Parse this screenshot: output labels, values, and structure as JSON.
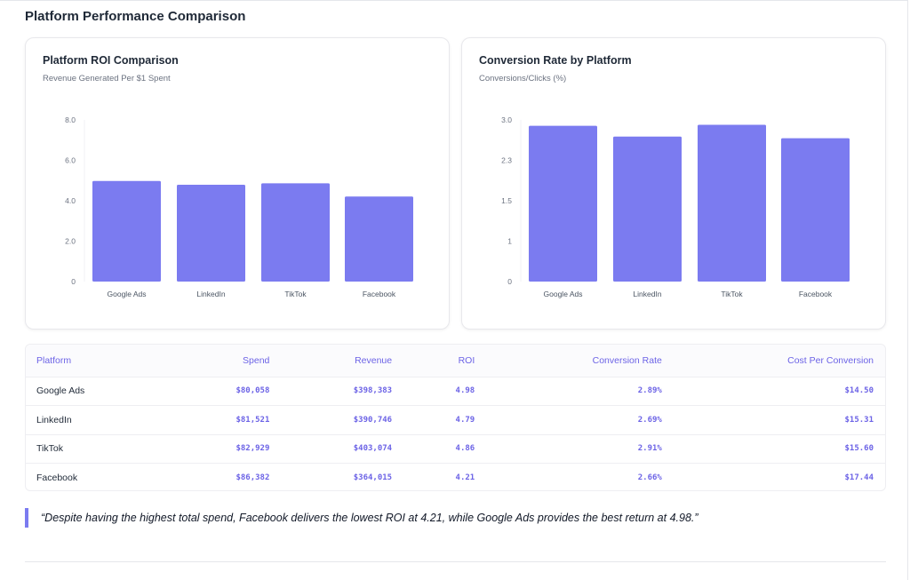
{
  "page": {
    "title": "Platform Performance Comparison",
    "insight_quote": "“Despite having the highest total spend, Facebook delivers the lowest ROI at 4.21, while Google Ads provides the best return at 4.98.”"
  },
  "colors": {
    "bar": "#7b7bf0",
    "accent_text": "#6c63e6",
    "quote_border": "#7b7bf0"
  },
  "chart_data": [
    {
      "type": "bar",
      "title": "Platform ROI Comparison",
      "subtitle": "Revenue Generated Per $1 Spent",
      "categories": [
        "Google Ads",
        "LinkedIn",
        "TikTok",
        "Facebook"
      ],
      "values": [
        4.98,
        4.79,
        4.86,
        4.21
      ],
      "yticks": [
        0,
        2,
        4,
        6,
        8
      ],
      "ytick_labels": [
        "0",
        "2.0",
        "4.0",
        "6.0",
        "8.0"
      ],
      "ylim": [
        0,
        8
      ],
      "grid": false
    },
    {
      "type": "bar",
      "title": "Conversion Rate by Platform",
      "subtitle": "Conversions/Clicks (%)",
      "categories": [
        "Google Ads",
        "LinkedIn",
        "TikTok",
        "Facebook"
      ],
      "values": [
        2.89,
        2.69,
        2.91,
        2.66
      ],
      "yticks": [
        0,
        0.75,
        1.5,
        2.25,
        3
      ],
      "ytick_labels": [
        "0",
        "1",
        "1.5",
        "2.3",
        "3.0"
      ],
      "ylim": [
        0,
        3
      ],
      "grid": false
    }
  ],
  "table": {
    "headers": [
      "Platform",
      "Spend",
      "Revenue",
      "ROI",
      "Conversion Rate",
      "Cost Per Conversion"
    ],
    "rows": [
      [
        "Google Ads",
        "$80,058",
        "$398,383",
        "4.98",
        "2.89%",
        "$14.50"
      ],
      [
        "LinkedIn",
        "$81,521",
        "$390,746",
        "4.79",
        "2.69%",
        "$15.31"
      ],
      [
        "TikTok",
        "$82,929",
        "$403,074",
        "4.86",
        "2.91%",
        "$15.60"
      ],
      [
        "Facebook",
        "$86,382",
        "$364,015",
        "4.21",
        "2.66%",
        "$17.44"
      ]
    ]
  }
}
